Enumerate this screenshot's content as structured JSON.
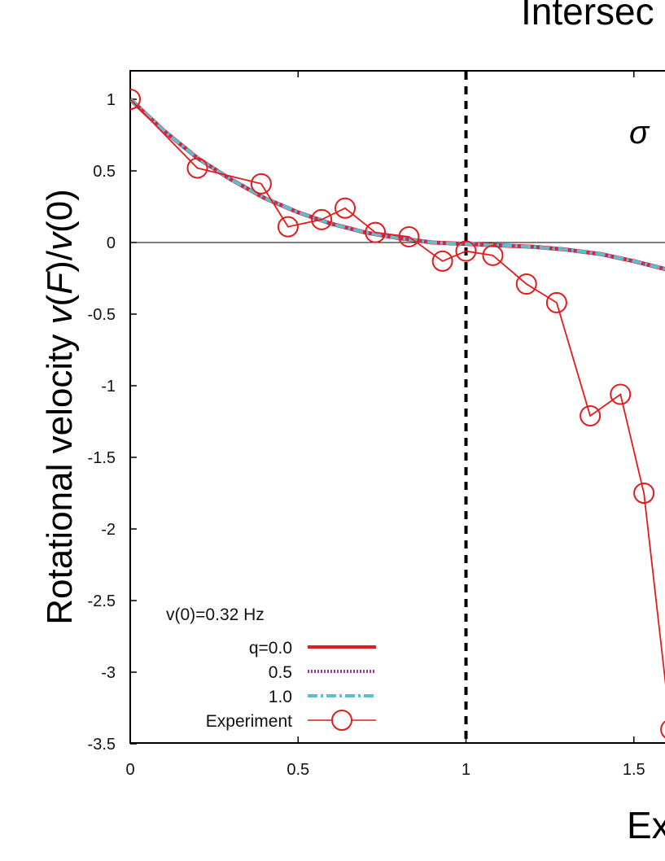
{
  "chart_data": {
    "type": "line",
    "title": "Intersec",
    "annotation": "σ",
    "xlabel": "Ex",
    "ylabel": "Rotational velocity v(F)/v(0)",
    "xlim": [
      0,
      1.6
    ],
    "ylim": [
      -3.5,
      1.2
    ],
    "xticks": [
      0,
      0.5,
      1,
      1.5
    ],
    "xtick_labels": [
      "0",
      "0.5",
      "1",
      "1.5"
    ],
    "yticks": [
      1,
      0.5,
      0,
      -0.5,
      -1,
      -1.5,
      -2,
      -2.5,
      -3,
      -3.5
    ],
    "ytick_labels": [
      "1",
      "0.5",
      "0",
      "-0.5",
      "-1",
      "-1.5",
      "-2",
      "-2.5",
      "-3",
      "-3.5"
    ],
    "vline_x": 1,
    "legend": {
      "placement": "bottom-left",
      "header": "v(0)=0.32 Hz",
      "entries": [
        "q=0.0",
        "0.5",
        "1.0",
        "Experiment"
      ]
    },
    "series": [
      {
        "name": "q=0.0",
        "style": "solid",
        "color": "#e41a1c",
        "x": [
          0,
          0.1,
          0.2,
          0.3,
          0.4,
          0.5,
          0.6,
          0.7,
          0.8,
          0.9,
          1.0,
          1.1,
          1.2,
          1.3,
          1.4,
          1.5,
          1.6
        ],
        "y": [
          1.0,
          0.78,
          0.59,
          0.44,
          0.31,
          0.21,
          0.13,
          0.07,
          0.03,
          0.0,
          -0.01,
          -0.02,
          -0.03,
          -0.05,
          -0.08,
          -0.13,
          -0.19
        ]
      },
      {
        "name": "0.5",
        "style": "dotted",
        "color": "#a4399e",
        "x": [
          0,
          0.1,
          0.2,
          0.3,
          0.4,
          0.5,
          0.6,
          0.7,
          0.8,
          0.9,
          1.0,
          1.1,
          1.2,
          1.3,
          1.4,
          1.5,
          1.6
        ],
        "y": [
          1.0,
          0.78,
          0.59,
          0.44,
          0.31,
          0.21,
          0.13,
          0.07,
          0.03,
          0.0,
          -0.01,
          -0.02,
          -0.03,
          -0.05,
          -0.08,
          -0.13,
          -0.19
        ]
      },
      {
        "name": "1.0",
        "style": "dashdot",
        "color": "#5bbfd0",
        "x": [
          0,
          0.1,
          0.2,
          0.3,
          0.4,
          0.5,
          0.6,
          0.7,
          0.8,
          0.9,
          1.0,
          1.1,
          1.2,
          1.3,
          1.4,
          1.5,
          1.6
        ],
        "y": [
          1.0,
          0.78,
          0.59,
          0.44,
          0.31,
          0.21,
          0.13,
          0.07,
          0.03,
          0.0,
          -0.01,
          -0.02,
          -0.03,
          -0.05,
          -0.08,
          -0.13,
          -0.19
        ]
      },
      {
        "name": "Experiment",
        "style": "markers",
        "color": "#e41a1c",
        "x": [
          0,
          0.2,
          0.39,
          0.47,
          0.57,
          0.64,
          0.73,
          0.83,
          0.93,
          1.0,
          1.08,
          1.18,
          1.27,
          1.37,
          1.46,
          1.53,
          1.61
        ],
        "y": [
          1.0,
          0.52,
          0.41,
          0.11,
          0.16,
          0.24,
          0.07,
          0.04,
          -0.13,
          -0.06,
          -0.09,
          -0.29,
          -0.42,
          -1.21,
          -1.06,
          -1.75,
          -3.4
        ]
      }
    ]
  }
}
